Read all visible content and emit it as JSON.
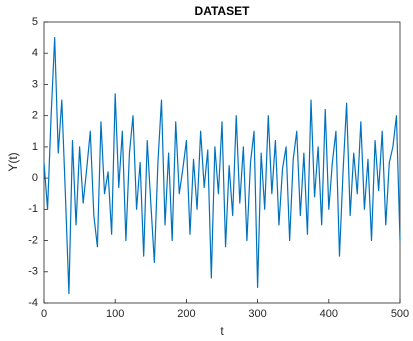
{
  "chart_data": {
    "type": "line",
    "title": "DATASET",
    "xlabel": "t",
    "ylabel": "Y(t)",
    "x": [
      0,
      5,
      10,
      15,
      20,
      25,
      30,
      35,
      40,
      45,
      50,
      55,
      60,
      65,
      70,
      75,
      80,
      85,
      90,
      95,
      100,
      105,
      110,
      115,
      120,
      125,
      130,
      135,
      140,
      145,
      150,
      155,
      160,
      165,
      170,
      175,
      180,
      185,
      190,
      195,
      200,
      205,
      210,
      215,
      220,
      225,
      230,
      235,
      240,
      245,
      250,
      255,
      260,
      265,
      270,
      275,
      280,
      285,
      290,
      295,
      300,
      305,
      310,
      315,
      320,
      325,
      330,
      335,
      340,
      345,
      350,
      355,
      360,
      365,
      370,
      375,
      380,
      385,
      390,
      395,
      400,
      405,
      410,
      415,
      420,
      425,
      430,
      435,
      440,
      445,
      450,
      455,
      460,
      465,
      470,
      475,
      480,
      485,
      490,
      495,
      500
    ],
    "values": [
      0.5,
      -1.0,
      2.0,
      4.5,
      0.8,
      2.5,
      -0.5,
      -3.7,
      1.2,
      -1.5,
      1.0,
      -0.8,
      0.3,
      1.5,
      -1.2,
      -2.2,
      1.8,
      -0.5,
      0.2,
      -1.8,
      2.7,
      -0.3,
      1.5,
      -2.0,
      0.8,
      2.0,
      -1.0,
      0.5,
      -2.5,
      1.2,
      -0.8,
      -2.7,
      0.5,
      2.5,
      -1.5,
      0.8,
      -2.0,
      1.8,
      -0.5,
      0.3,
      1.2,
      -1.8,
      0.6,
      -1.0,
      1.5,
      -0.3,
      0.9,
      -3.2,
      1.0,
      -0.5,
      1.8,
      -2.2,
      0.4,
      -1.2,
      2.0,
      -0.8,
      1.0,
      -2.0,
      0.5,
      1.5,
      -3.5,
      0.8,
      -1.0,
      2.0,
      -0.5,
      1.2,
      -1.5,
      0.3,
      1.0,
      -2.0,
      0.6,
      1.5,
      -1.2,
      0.8,
      -1.8,
      2.5,
      -0.6,
      1.0,
      -1.5,
      2.2,
      -1.0,
      0.5,
      1.5,
      -2.5,
      0.2,
      2.4,
      -1.2,
      0.8,
      -0.5,
      1.8,
      -1.0,
      0.6,
      -2.0,
      1.2,
      -0.4,
      1.5,
      -1.5,
      0.5,
      1.0,
      2.0,
      -2.0
    ],
    "color": "#0072BD",
    "xlim": [
      0,
      500
    ],
    "xticks": [
      0,
      100,
      200,
      300,
      400,
      500
    ],
    "ylim": [
      -4,
      5
    ],
    "yticks": [
      -4,
      -3,
      -2,
      -1,
      0,
      1,
      2,
      3,
      4,
      5
    ]
  }
}
